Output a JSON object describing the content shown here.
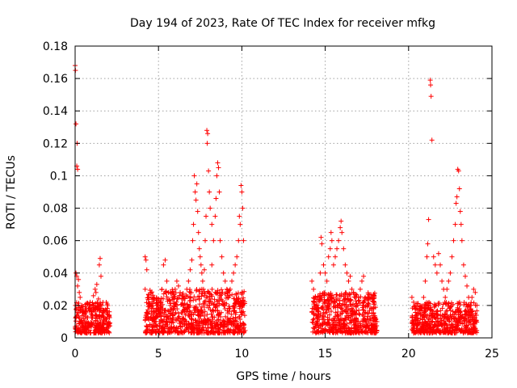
{
  "chart_data": {
    "type": "scatter",
    "title": "Day 194 of 2023, Rate Of TEC Index for receiver mfkg",
    "xlabel": "GPS time / hours",
    "ylabel": "ROTI / TECUs",
    "xlim": [
      0,
      25
    ],
    "ylim": [
      0,
      0.18
    ],
    "x_ticks": [
      0,
      5,
      10,
      15,
      20,
      25
    ],
    "y_ticks": [
      0,
      0.02,
      0.04,
      0.06,
      0.08,
      0.1,
      0.12,
      0.14,
      0.16,
      0.18
    ],
    "x_tick_labels": [
      "0",
      "5",
      "10",
      "15",
      "20",
      "25"
    ],
    "y_tick_labels": [
      "0",
      "0.02",
      "0.04",
      "0.06",
      "0.08",
      "0.1",
      "0.12",
      "0.14",
      "0.16",
      "0.18"
    ],
    "grid": true,
    "marker": "+",
    "color": "#ff0000",
    "series": [
      {
        "name": "ROTI",
        "points": [
          [
            0.0,
            0.168
          ],
          [
            0.02,
            0.165
          ],
          [
            0.05,
            0.132
          ],
          [
            0.12,
            0.12
          ],
          [
            0.1,
            0.106
          ],
          [
            0.15,
            0.104
          ],
          [
            0.05,
            0.04
          ],
          [
            0.1,
            0.038
          ],
          [
            0.2,
            0.036
          ],
          [
            0.15,
            0.032
          ],
          [
            0.25,
            0.028
          ],
          [
            0.3,
            0.025
          ],
          [
            0.02,
            0.02
          ],
          [
            0.08,
            0.018
          ],
          [
            0.18,
            0.015
          ],
          [
            0.28,
            0.012
          ],
          [
            0.35,
            0.01
          ],
          [
            0.4,
            0.008
          ],
          [
            0.5,
            0.012
          ],
          [
            0.6,
            0.015
          ],
          [
            0.7,
            0.01
          ],
          [
            0.8,
            0.018
          ],
          [
            0.9,
            0.022
          ],
          [
            1.0,
            0.016
          ],
          [
            1.1,
            0.026
          ],
          [
            1.2,
            0.03
          ],
          [
            1.25,
            0.028
          ],
          [
            1.3,
            0.033
          ],
          [
            1.4,
            0.024
          ],
          [
            1.5,
            0.049
          ],
          [
            1.45,
            0.045
          ],
          [
            1.55,
            0.038
          ],
          [
            1.6,
            0.02
          ],
          [
            1.7,
            0.015
          ],
          [
            1.8,
            0.012
          ],
          [
            1.9,
            0.01
          ],
          [
            2.0,
            0.008
          ],
          [
            2.05,
            0.014
          ],
          [
            0.6,
            0.006
          ],
          [
            1.3,
            0.007
          ],
          [
            1.7,
            0.005
          ],
          [
            0.4,
            0.02
          ],
          [
            4.2,
            0.05
          ],
          [
            4.25,
            0.048
          ],
          [
            4.3,
            0.042
          ],
          [
            4.2,
            0.03
          ],
          [
            4.4,
            0.025
          ],
          [
            4.5,
            0.02
          ],
          [
            4.6,
            0.015
          ],
          [
            4.7,
            0.012
          ],
          [
            4.8,
            0.01
          ],
          [
            4.9,
            0.018
          ],
          [
            5.0,
            0.022
          ],
          [
            5.1,
            0.016
          ],
          [
            5.2,
            0.03
          ],
          [
            5.3,
            0.045
          ],
          [
            5.4,
            0.048
          ],
          [
            5.5,
            0.035
          ],
          [
            5.6,
            0.028
          ],
          [
            5.7,
            0.02
          ],
          [
            5.8,
            0.018
          ],
          [
            5.9,
            0.025
          ],
          [
            6.0,
            0.03
          ],
          [
            6.1,
            0.035
          ],
          [
            6.2,
            0.032
          ],
          [
            6.3,
            0.028
          ],
          [
            6.4,
            0.024
          ],
          [
            6.5,
            0.02
          ],
          [
            6.6,
            0.018
          ],
          [
            6.7,
            0.03
          ],
          [
            6.8,
            0.035
          ],
          [
            6.9,
            0.042
          ],
          [
            7.0,
            0.048
          ],
          [
            7.05,
            0.06
          ],
          [
            7.1,
            0.07
          ],
          [
            7.15,
            0.1
          ],
          [
            7.2,
            0.09
          ],
          [
            7.25,
            0.085
          ],
          [
            7.3,
            0.095
          ],
          [
            7.35,
            0.078
          ],
          [
            7.4,
            0.065
          ],
          [
            7.45,
            0.055
          ],
          [
            7.5,
            0.05
          ],
          [
            7.55,
            0.045
          ],
          [
            7.6,
            0.04
          ],
          [
            7.65,
            0.035
          ],
          [
            7.7,
            0.03
          ],
          [
            7.75,
            0.042
          ],
          [
            7.8,
            0.06
          ],
          [
            7.85,
            0.075
          ],
          [
            7.9,
            0.128
          ],
          [
            7.95,
            0.126
          ],
          [
            7.92,
            0.12
          ],
          [
            8.0,
            0.103
          ],
          [
            8.05,
            0.09
          ],
          [
            8.1,
            0.08
          ],
          [
            8.2,
            0.07
          ],
          [
            8.3,
            0.06
          ],
          [
            8.4,
            0.075
          ],
          [
            8.45,
            0.086
          ],
          [
            8.5,
            0.1
          ],
          [
            8.55,
            0.108
          ],
          [
            8.6,
            0.105
          ],
          [
            8.65,
            0.09
          ],
          [
            8.7,
            0.06
          ],
          [
            8.8,
            0.05
          ],
          [
            8.9,
            0.04
          ],
          [
            9.0,
            0.035
          ],
          [
            9.1,
            0.03
          ],
          [
            9.2,
            0.025
          ],
          [
            9.3,
            0.03
          ],
          [
            9.4,
            0.035
          ],
          [
            9.5,
            0.04
          ],
          [
            9.6,
            0.045
          ],
          [
            9.7,
            0.05
          ],
          [
            9.8,
            0.06
          ],
          [
            9.9,
            0.07
          ],
          [
            9.95,
            0.094
          ],
          [
            10.0,
            0.09
          ],
          [
            10.05,
            0.08
          ],
          [
            10.1,
            0.06
          ],
          [
            9.85,
            0.075
          ],
          [
            8.2,
            0.045
          ],
          [
            7.6,
            0.03
          ],
          [
            6.5,
            0.012
          ],
          [
            5.5,
            0.01
          ],
          [
            14.2,
            0.035
          ],
          [
            14.3,
            0.03
          ],
          [
            14.4,
            0.025
          ],
          [
            14.5,
            0.02
          ],
          [
            14.6,
            0.018
          ],
          [
            14.7,
            0.04
          ],
          [
            14.75,
            0.062
          ],
          [
            14.8,
            0.058
          ],
          [
            14.9,
            0.045
          ],
          [
            15.0,
            0.04
          ],
          [
            15.1,
            0.035
          ],
          [
            15.2,
            0.05
          ],
          [
            15.3,
            0.055
          ],
          [
            15.35,
            0.065
          ],
          [
            15.4,
            0.06
          ],
          [
            15.5,
            0.045
          ],
          [
            15.6,
            0.05
          ],
          [
            15.7,
            0.055
          ],
          [
            15.8,
            0.06
          ],
          [
            15.9,
            0.068
          ],
          [
            15.95,
            0.072
          ],
          [
            16.0,
            0.065
          ],
          [
            16.1,
            0.055
          ],
          [
            16.2,
            0.045
          ],
          [
            16.3,
            0.04
          ],
          [
            16.4,
            0.035
          ],
          [
            16.5,
            0.038
          ],
          [
            16.6,
            0.03
          ],
          [
            16.7,
            0.028
          ],
          [
            16.8,
            0.025
          ],
          [
            16.9,
            0.02
          ],
          [
            17.0,
            0.025
          ],
          [
            17.1,
            0.03
          ],
          [
            17.2,
            0.035
          ],
          [
            17.3,
            0.038
          ],
          [
            17.4,
            0.025
          ],
          [
            17.5,
            0.02
          ],
          [
            17.6,
            0.015
          ],
          [
            17.7,
            0.012
          ],
          [
            17.8,
            0.018
          ],
          [
            17.9,
            0.015
          ],
          [
            18.0,
            0.012
          ],
          [
            18.1,
            0.01
          ],
          [
            15.5,
            0.025
          ],
          [
            16.0,
            0.02
          ],
          [
            14.5,
            0.012
          ],
          [
            17.0,
            0.01
          ],
          [
            14.3,
            0.015
          ],
          [
            20.2,
            0.025
          ],
          [
            20.3,
            0.022
          ],
          [
            20.4,
            0.02
          ],
          [
            20.5,
            0.018
          ],
          [
            20.6,
            0.015
          ],
          [
            20.7,
            0.012
          ],
          [
            20.8,
            0.018
          ],
          [
            20.9,
            0.025
          ],
          [
            21.0,
            0.035
          ],
          [
            21.1,
            0.05
          ],
          [
            21.15,
            0.058
          ],
          [
            21.2,
            0.073
          ],
          [
            21.3,
            0.159
          ],
          [
            21.32,
            0.156
          ],
          [
            21.35,
            0.149
          ],
          [
            21.4,
            0.122
          ],
          [
            21.5,
            0.05
          ],
          [
            21.6,
            0.045
          ],
          [
            21.7,
            0.04
          ],
          [
            21.8,
            0.052
          ],
          [
            21.9,
            0.045
          ],
          [
            22.0,
            0.035
          ],
          [
            22.1,
            0.03
          ],
          [
            22.2,
            0.025
          ],
          [
            22.3,
            0.03
          ],
          [
            22.4,
            0.035
          ],
          [
            22.5,
            0.04
          ],
          [
            22.6,
            0.05
          ],
          [
            22.7,
            0.06
          ],
          [
            22.8,
            0.07
          ],
          [
            22.85,
            0.083
          ],
          [
            22.9,
            0.087
          ],
          [
            22.95,
            0.104
          ],
          [
            23.0,
            0.103
          ],
          [
            23.05,
            0.092
          ],
          [
            23.1,
            0.078
          ],
          [
            23.15,
            0.07
          ],
          [
            23.2,
            0.06
          ],
          [
            23.3,
            0.045
          ],
          [
            23.4,
            0.038
          ],
          [
            23.5,
            0.032
          ],
          [
            23.6,
            0.025
          ],
          [
            23.7,
            0.02
          ],
          [
            23.8,
            0.025
          ],
          [
            23.9,
            0.03
          ],
          [
            24.0,
            0.028
          ],
          [
            21.0,
            0.01
          ],
          [
            22.0,
            0.008
          ],
          [
            23.0,
            0.012
          ],
          [
            20.5,
            0.008
          ],
          [
            23.5,
            0.01
          ],
          [
            24.0,
            0.015
          ]
        ]
      }
    ],
    "dense_bands": [
      {
        "x_start": 0.0,
        "x_end": 2.1,
        "y_min": 0.003,
        "y_max": 0.022
      },
      {
        "x_start": 4.2,
        "x_end": 10.2,
        "y_min": 0.003,
        "y_max": 0.03
      },
      {
        "x_start": 14.2,
        "x_end": 18.1,
        "y_min": 0.003,
        "y_max": 0.028
      },
      {
        "x_start": 20.2,
        "x_end": 24.1,
        "y_min": 0.003,
        "y_max": 0.022
      }
    ]
  }
}
